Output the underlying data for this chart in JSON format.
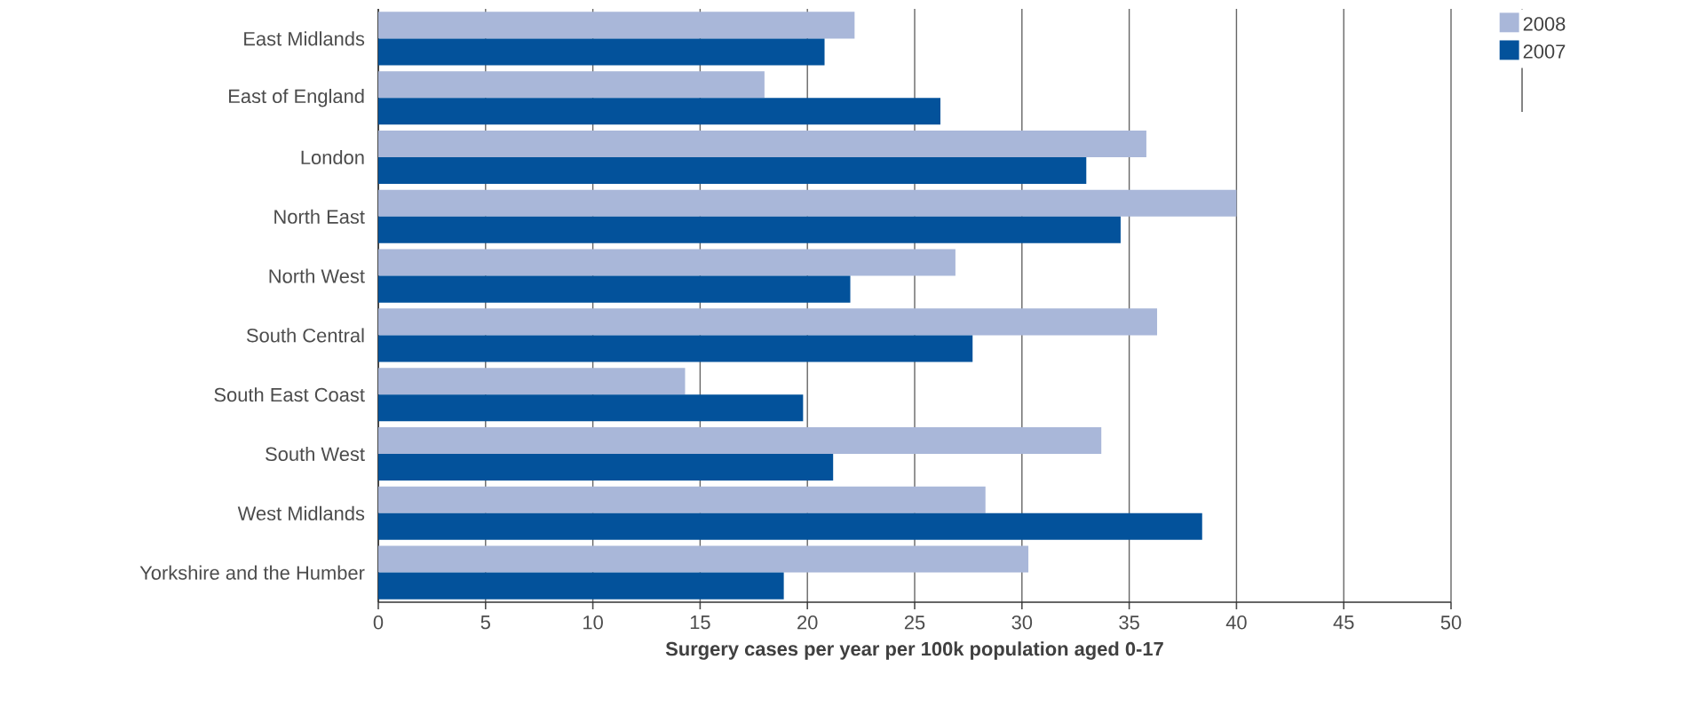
{
  "chart_data": {
    "type": "bar",
    "orientation": "horizontal",
    "xlabel": "Surgery cases per year per 100k population aged 0-17",
    "categories": [
      "East Midlands",
      "East of England",
      "London",
      "North East",
      "North West",
      "South Central",
      "South East Coast",
      "South West",
      "West Midlands",
      "Yorkshire and the Humber"
    ],
    "series": [
      {
        "name": "2008",
        "color": "#a9b7d9",
        "values": [
          22.2,
          18.0,
          35.8,
          40.0,
          26.9,
          36.3,
          14.3,
          33.7,
          28.3,
          30.3
        ]
      },
      {
        "name": "2007",
        "color": "#03529b",
        "values": [
          20.8,
          26.2,
          33.0,
          34.6,
          22.0,
          27.7,
          19.8,
          21.2,
          38.4,
          18.9
        ]
      }
    ],
    "xlim": [
      0,
      50
    ],
    "xticks": [
      0,
      5,
      10,
      15,
      20,
      25,
      30,
      35,
      40,
      45,
      50
    ],
    "grid": "x",
    "legend": "top right"
  }
}
